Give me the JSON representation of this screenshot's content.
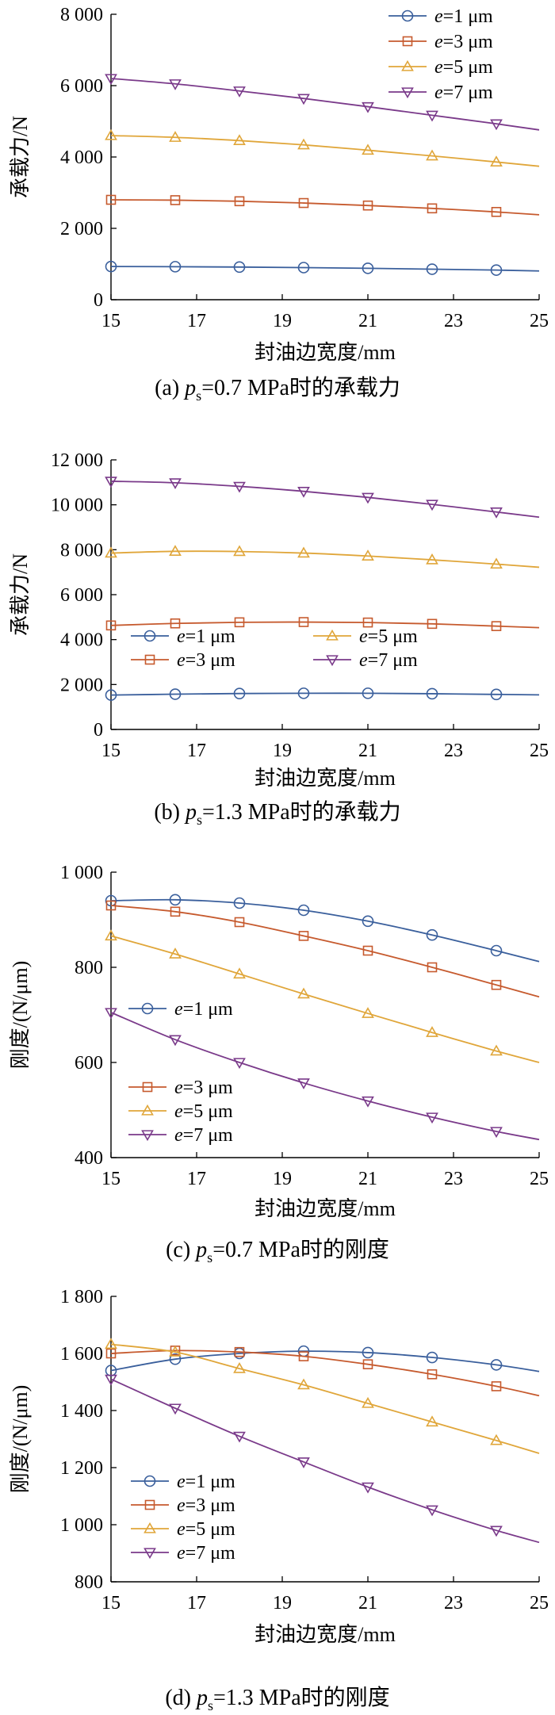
{
  "chart_data": [
    {
      "type": "line",
      "caption": {
        "prefix": "(a)  ",
        "p": "p",
        "sub": "s",
        "rest": "=0.7 MPa时的承载力"
      },
      "xlabel": "封油边宽度/mm",
      "ylabel": "承载力/N",
      "xlim": [
        15,
        25
      ],
      "ylim": [
        0,
        8000
      ],
      "xticks": [
        15,
        17,
        19,
        21,
        23,
        25
      ],
      "xtick_labels": [
        "15",
        "17",
        "19",
        "21",
        "23",
        "25"
      ],
      "yticks": [
        0,
        2000,
        4000,
        6000,
        8000
      ],
      "ytick_labels": [
        "0",
        "2 000",
        "4 000",
        "6 000",
        "8 000"
      ],
      "grid": false,
      "legend_position": "top-right",
      "x": [
        15,
        16.5,
        18,
        19.5,
        21,
        22.5,
        24,
        25
      ],
      "series": [
        {
          "name": "e=1 μm",
          "e": "e",
          "unit": "=1 μm",
          "marker": "circle",
          "color": "#3a5f9c",
          "values": [
            930,
            925,
            915,
            900,
            880,
            855,
            830,
            805
          ]
        },
        {
          "name": "e=3 μm",
          "e": "e",
          "unit": "=3 μm",
          "marker": "square",
          "color": "#c65a2e",
          "values": [
            2800,
            2790,
            2760,
            2710,
            2640,
            2560,
            2460,
            2380
          ]
        },
        {
          "name": "e=5 μm",
          "e": "e",
          "unit": "=5 μm",
          "marker": "triangle-up",
          "color": "#e0a63a",
          "values": [
            4600,
            4550,
            4460,
            4340,
            4190,
            4030,
            3860,
            3740
          ]
        },
        {
          "name": "e=7 μm",
          "e": "e",
          "unit": "=7 μm",
          "marker": "triangle-down",
          "color": "#7a3a8a",
          "values": [
            6200,
            6050,
            5850,
            5640,
            5410,
            5170,
            4930,
            4760
          ]
        }
      ]
    },
    {
      "type": "line",
      "caption": {
        "prefix": "(b)  ",
        "p": "p",
        "sub": "s",
        "rest": "=1.3 MPa时的承载力"
      },
      "xlabel": "封油边宽度/mm",
      "ylabel": "承载力/N",
      "xlim": [
        15,
        25
      ],
      "ylim": [
        0,
        12000
      ],
      "xticks": [
        15,
        17,
        19,
        21,
        23,
        25
      ],
      "xtick_labels": [
        "15",
        "17",
        "19",
        "21",
        "23",
        "25"
      ],
      "yticks": [
        0,
        2000,
        4000,
        6000,
        8000,
        10000,
        12000
      ],
      "ytick_labels": [
        "0",
        "2 000",
        "4 000",
        "6 000",
        "8 000",
        "10 000",
        "12 000"
      ],
      "grid": false,
      "legend_position": "middle (two columns)",
      "x": [
        15,
        16.5,
        18,
        19.5,
        21,
        22.5,
        24,
        25
      ],
      "series": [
        {
          "name": "e=1 μm",
          "e": "e",
          "unit": "=1 μm",
          "marker": "circle",
          "color": "#3a5f9c",
          "values": [
            1530,
            1570,
            1600,
            1610,
            1610,
            1590,
            1560,
            1540
          ]
        },
        {
          "name": "e=3 μm",
          "e": "e",
          "unit": "=3 μm",
          "marker": "square",
          "color": "#c65a2e",
          "values": [
            4630,
            4720,
            4770,
            4780,
            4760,
            4700,
            4600,
            4530
          ]
        },
        {
          "name": "e=5 μm",
          "e": "e",
          "unit": "=5 μm",
          "marker": "triangle-up",
          "color": "#e0a63a",
          "values": [
            7850,
            7930,
            7920,
            7850,
            7720,
            7550,
            7360,
            7220
          ]
        },
        {
          "name": "e=7 μm",
          "e": "e",
          "unit": "=7 μm",
          "marker": "triangle-down",
          "color": "#7a3a8a",
          "values": [
            11050,
            10980,
            10820,
            10600,
            10330,
            10020,
            9680,
            9450
          ]
        }
      ]
    },
    {
      "type": "line",
      "caption": {
        "prefix": "(c)  ",
        "p": "p",
        "sub": "s",
        "rest": "=0.7 MPa时的刚度"
      },
      "xlabel": "封油边宽度/mm",
      "ylabel": "刚度/(N/μm)",
      "xlim": [
        15,
        25
      ],
      "ylim": [
        400,
        1000
      ],
      "xticks": [
        15,
        17,
        19,
        21,
        23,
        25
      ],
      "xtick_labels": [
        "15",
        "17",
        "19",
        "21",
        "23",
        "25"
      ],
      "yticks": [
        400,
        600,
        800,
        1000
      ],
      "ytick_labels": [
        "400",
        "600",
        "800",
        "1 000"
      ],
      "grid": false,
      "legend_position": "left (split)",
      "x": [
        15,
        16.5,
        18,
        19.5,
        21,
        22.5,
        24,
        25
      ],
      "series": [
        {
          "name": "e=1 μm",
          "e": "e",
          "unit": "=1 μm",
          "marker": "circle",
          "color": "#3a5f9c",
          "values": [
            940,
            942,
            935,
            920,
            897,
            868,
            835,
            812
          ]
        },
        {
          "name": "e=3 μm",
          "e": "e",
          "unit": "=3 μm",
          "marker": "square",
          "color": "#c65a2e",
          "values": [
            930,
            917,
            895,
            866,
            835,
            800,
            763,
            738
          ]
        },
        {
          "name": "e=5 μm",
          "e": "e",
          "unit": "=5 μm",
          "marker": "triangle-up",
          "color": "#e0a63a",
          "values": [
            866,
            828,
            786,
            744,
            703,
            663,
            624,
            600
          ]
        },
        {
          "name": "e=7 μm",
          "e": "e",
          "unit": "=7 μm",
          "marker": "triangle-down",
          "color": "#7a3a8a",
          "values": [
            705,
            648,
            600,
            557,
            519,
            485,
            455,
            438
          ]
        }
      ]
    },
    {
      "type": "line",
      "caption": {
        "prefix": "(d)  ",
        "p": "p",
        "sub": "s",
        "rest": "=1.3 MPa时的刚度"
      },
      "xlabel": "封油边宽度/mm",
      "ylabel": "刚度/(N/μm)",
      "xlim": [
        15,
        25
      ],
      "ylim": [
        800,
        1800
      ],
      "xticks": [
        15,
        17,
        19,
        21,
        23,
        25
      ],
      "xtick_labels": [
        "15",
        "17",
        "19",
        "21",
        "23",
        "25"
      ],
      "yticks": [
        800,
        1000,
        1200,
        1400,
        1600,
        1800
      ],
      "ytick_labels": [
        "800",
        "1 000",
        "1 200",
        "1 400",
        "1 600",
        "1 800"
      ],
      "grid": false,
      "legend_position": "lower-left",
      "x": [
        15,
        16.5,
        18,
        19.5,
        21,
        22.5,
        24,
        25
      ],
      "series": [
        {
          "name": "e=1 μm",
          "e": "e",
          "unit": "=1 μm",
          "marker": "circle",
          "color": "#3a5f9c",
          "values": [
            1540,
            1580,
            1600,
            1608,
            1603,
            1586,
            1560,
            1537
          ]
        },
        {
          "name": "e=3 μm",
          "e": "e",
          "unit": "=3 μm",
          "marker": "square",
          "color": "#c65a2e",
          "values": [
            1600,
            1610,
            1605,
            1590,
            1562,
            1527,
            1485,
            1452
          ]
        },
        {
          "name": "e=5 μm",
          "e": "e",
          "unit": "=5 μm",
          "marker": "triangle-up",
          "color": "#e0a63a",
          "values": [
            1632,
            1605,
            1547,
            1490,
            1425,
            1360,
            1295,
            1250
          ]
        },
        {
          "name": "e=7 μm",
          "e": "e",
          "unit": "=7 μm",
          "marker": "triangle-down",
          "color": "#7a3a8a",
          "values": [
            1510,
            1408,
            1310,
            1220,
            1132,
            1052,
            980,
            938
          ]
        }
      ]
    }
  ]
}
